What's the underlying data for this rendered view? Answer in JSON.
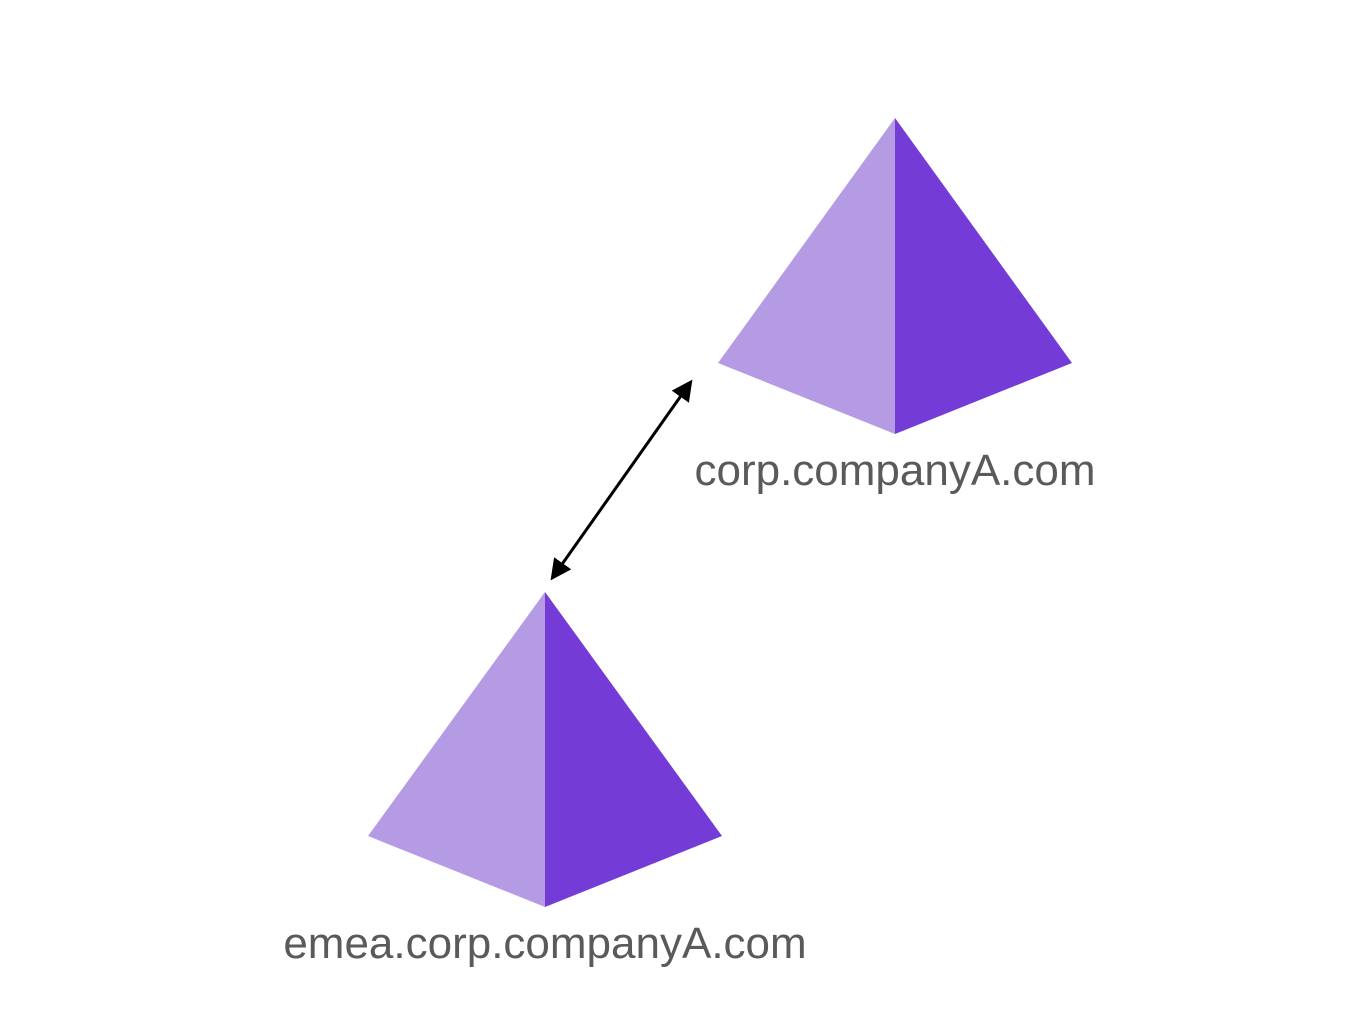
{
  "domains": [
    {
      "id": "parent",
      "name": "corp.companyA.com",
      "icon": "domain-pyramid-icon"
    },
    {
      "id": "child",
      "name": "emea.corp.companyA.com",
      "icon": "domain-pyramid-icon"
    }
  ],
  "trust": {
    "direction": "two-way",
    "icon": "double-headed-arrow-icon"
  },
  "colors": {
    "pyramid_light": "#b49be4",
    "pyramid_dark": "#743bd7",
    "label": "#5a5a5a",
    "arrow": "#000000",
    "background": "#ffffff"
  }
}
